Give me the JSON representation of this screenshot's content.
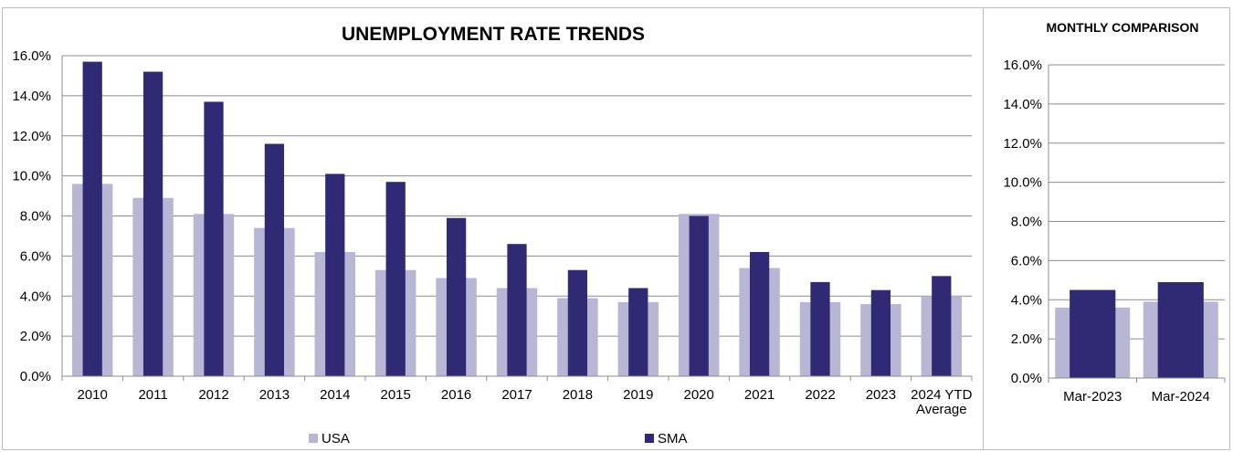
{
  "chart_data": [
    {
      "type": "bar",
      "title": "UNEMPLOYMENT RATE TRENDS",
      "categories": [
        "2010",
        "2011",
        "2012",
        "2013",
        "2014",
        "2015",
        "2016",
        "2017",
        "2018",
        "2019",
        "2020",
        "2021",
        "2022",
        "2023",
        "2024 YTD Average"
      ],
      "series": [
        {
          "name": "USA",
          "color": "#b8b6d5",
          "values": [
            9.6,
            8.9,
            8.1,
            7.4,
            6.2,
            5.3,
            4.9,
            4.4,
            3.9,
            3.7,
            8.1,
            5.4,
            3.7,
            3.6,
            4.0
          ]
        },
        {
          "name": "SMA",
          "color": "#302974",
          "values": [
            15.7,
            15.2,
            13.7,
            11.6,
            10.1,
            9.7,
            7.9,
            6.6,
            5.3,
            4.4,
            8.0,
            6.2,
            4.7,
            4.3,
            5.0
          ]
        }
      ],
      "ylim": [
        0,
        16
      ],
      "yticks": [
        "0.0%",
        "2.0%",
        "4.0%",
        "6.0%",
        "8.0%",
        "10.0%",
        "12.0%",
        "14.0%",
        "16.0%"
      ],
      "grid": true,
      "legend": "bottom"
    },
    {
      "type": "bar",
      "title": "MONTHLY COMPARISON",
      "categories": [
        "Mar-2023",
        "Mar-2024"
      ],
      "series": [
        {
          "name": "USA",
          "color": "#b8b6d5",
          "values": [
            3.6,
            3.9
          ]
        },
        {
          "name": "SMA",
          "color": "#302974",
          "values": [
            4.5,
            4.9
          ]
        }
      ],
      "ylim": [
        0,
        16
      ],
      "yticks": [
        "0.0%",
        "2.0%",
        "4.0%",
        "6.0%",
        "8.0%",
        "10.0%",
        "12.0%",
        "14.0%",
        "16.0%"
      ],
      "grid": true,
      "legend": "none"
    }
  ]
}
